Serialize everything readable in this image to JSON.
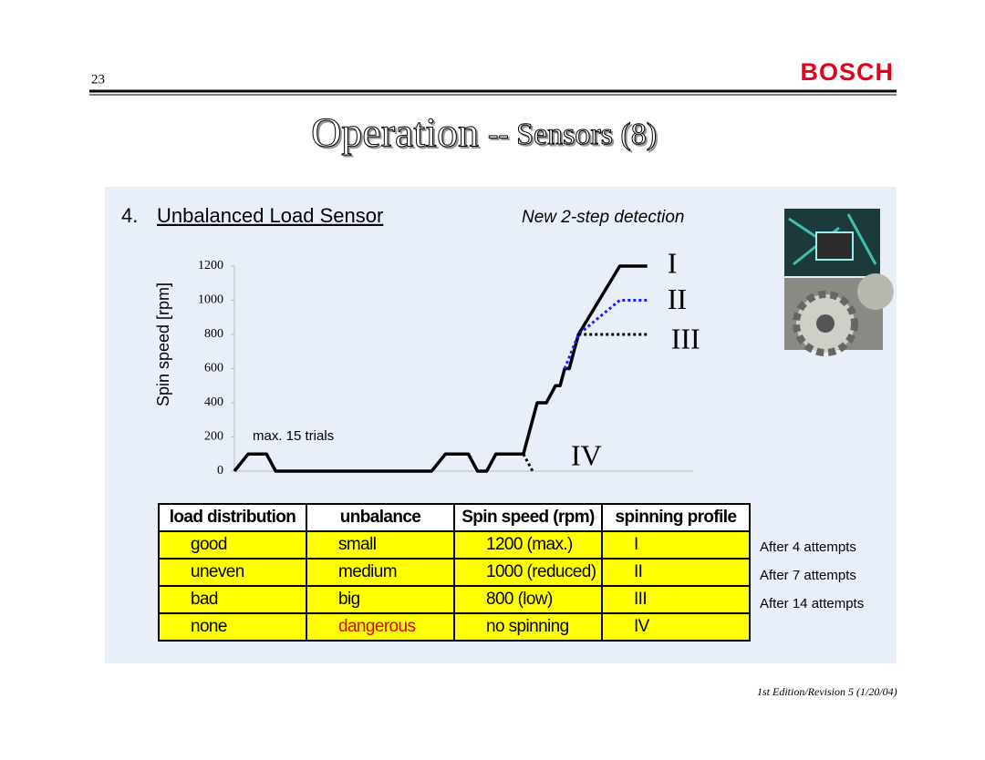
{
  "header": {
    "page_number": "23",
    "logo": "BOSCH",
    "title_main": "Operation",
    "title_rest": "-- Sensors (8)"
  },
  "section": {
    "number": "4.",
    "heading": "Unbalanced Load Sensor",
    "subheading": "New 2-step detection"
  },
  "chart_data": {
    "type": "line",
    "y_label": "Spin speed [rpm]",
    "annotation": "max. 15 trials",
    "xlim": [
      0,
      100
    ],
    "ylim": [
      0,
      1200
    ],
    "yticks": [
      0,
      200,
      400,
      600,
      800,
      1000,
      1200
    ],
    "series": [
      {
        "name": "I",
        "color": "#000000",
        "style": "solid",
        "x": [
          0,
          3,
          7,
          9,
          43,
          46,
          51,
          53,
          55,
          57,
          63,
          66,
          68,
          70,
          71,
          72,
          73,
          75,
          84,
          90
        ],
        "values": [
          0,
          100,
          100,
          0,
          0,
          100,
          100,
          0,
          0,
          100,
          100,
          400,
          400,
          500,
          500,
          600,
          600,
          800,
          1200,
          1200
        ]
      },
      {
        "name": "II",
        "color": "#1a1aff",
        "style": "dotted",
        "x": [
          72,
          75,
          84,
          90
        ],
        "values": [
          600,
          800,
          1000,
          1000
        ]
      },
      {
        "name": "III",
        "color": "#000000",
        "style": "dotted",
        "x": [
          75,
          90
        ],
        "values": [
          800,
          800
        ]
      },
      {
        "name": "IV",
        "color": "#000000",
        "style": "dotted",
        "x": [
          63,
          65
        ],
        "values": [
          100,
          0
        ]
      }
    ]
  },
  "table": {
    "header": [
      "load distribution",
      "unbalance",
      "Spin speed (rpm)",
      "spinning profile"
    ],
    "rows": [
      [
        "good",
        "small",
        "1200 (max.)",
        "I"
      ],
      [
        "uneven",
        "medium",
        "1000 (reduced)",
        "II"
      ],
      [
        "bad",
        "big",
        "800 (low)",
        "III"
      ],
      [
        "none",
        "dangerous",
        "no spinning",
        "IV"
      ]
    ]
  },
  "notes": [
    "After 4 attempts",
    "After 7 attempts",
    "After 14 attempts"
  ],
  "footer": "1st Edition/Revision 5 (1/20/04)"
}
